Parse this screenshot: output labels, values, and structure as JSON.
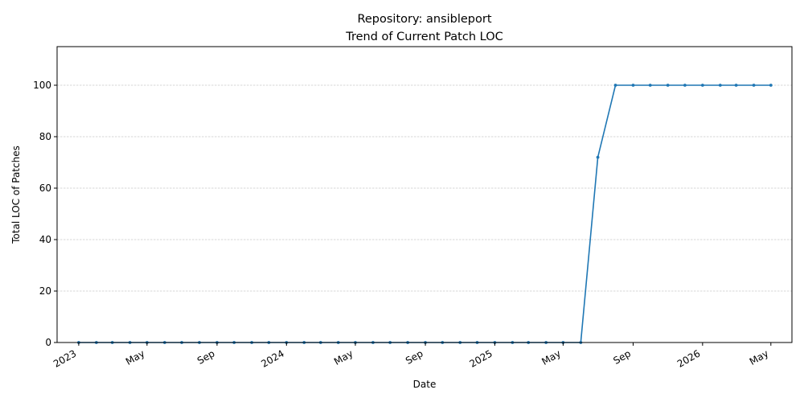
{
  "chart_data": {
    "type": "line",
    "title": "Repository: ansibleport",
    "subtitle": "Trend of Current Patch LOC",
    "xlabel": "Date",
    "ylabel": "Total LOC of Patches",
    "ylim": [
      0,
      115
    ],
    "xlim": [
      "2022-11-24",
      "2026-06-07"
    ],
    "grid": {
      "y": true,
      "x": false
    },
    "y_ticks": [
      0,
      20,
      40,
      60,
      80,
      100
    ],
    "x_ticks": [
      {
        "date": "2023-01-01",
        "label": "2023"
      },
      {
        "date": "2023-05-01",
        "label": "May"
      },
      {
        "date": "2023-09-01",
        "label": "Sep"
      },
      {
        "date": "2024-01-01",
        "label": "2024"
      },
      {
        "date": "2024-05-01",
        "label": "May"
      },
      {
        "date": "2024-09-01",
        "label": "Sep"
      },
      {
        "date": "2025-01-01",
        "label": "2025"
      },
      {
        "date": "2025-05-01",
        "label": "May"
      },
      {
        "date": "2025-09-01",
        "label": "Sep"
      },
      {
        "date": "2026-01-01",
        "label": "2026"
      },
      {
        "date": "2026-05-01",
        "label": "May"
      }
    ],
    "series": [
      {
        "color": "#1f77b4",
        "points": [
          [
            "2023-01-01",
            0
          ],
          [
            "2023-02-01",
            0
          ],
          [
            "2023-03-01",
            0
          ],
          [
            "2023-04-01",
            0
          ],
          [
            "2023-05-01",
            0
          ],
          [
            "2023-06-01",
            0
          ],
          [
            "2023-07-01",
            0
          ],
          [
            "2023-08-01",
            0
          ],
          [
            "2023-09-01",
            0
          ],
          [
            "2023-10-01",
            0
          ],
          [
            "2023-11-01",
            0
          ],
          [
            "2023-12-01",
            0
          ],
          [
            "2024-01-01",
            0
          ],
          [
            "2024-02-01",
            0
          ],
          [
            "2024-03-01",
            0
          ],
          [
            "2024-04-01",
            0
          ],
          [
            "2024-05-01",
            0
          ],
          [
            "2024-06-01",
            0
          ],
          [
            "2024-07-01",
            0
          ],
          [
            "2024-08-01",
            0
          ],
          [
            "2024-09-01",
            0
          ],
          [
            "2024-10-01",
            0
          ],
          [
            "2024-11-01",
            0
          ],
          [
            "2024-12-01",
            0
          ],
          [
            "2025-01-01",
            0
          ],
          [
            "2025-02-01",
            0
          ],
          [
            "2025-03-01",
            0
          ],
          [
            "2025-04-01",
            0
          ],
          [
            "2025-05-01",
            0
          ],
          [
            "2025-06-01",
            0
          ],
          [
            "2025-07-01",
            72
          ],
          [
            "2025-08-01",
            100
          ],
          [
            "2025-09-01",
            100
          ],
          [
            "2025-10-01",
            100
          ],
          [
            "2025-11-01",
            100
          ],
          [
            "2025-12-01",
            100
          ],
          [
            "2026-01-01",
            100
          ],
          [
            "2026-02-01",
            100
          ],
          [
            "2026-03-01",
            100
          ],
          [
            "2026-04-01",
            100
          ],
          [
            "2026-05-01",
            100
          ]
        ]
      }
    ]
  }
}
